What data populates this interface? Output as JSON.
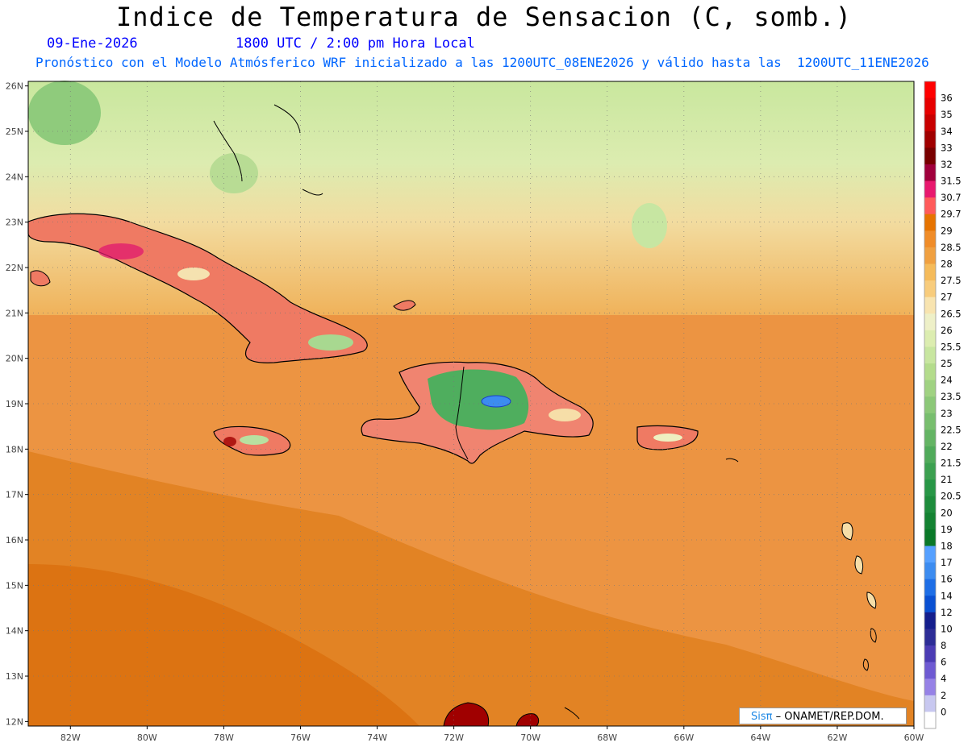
{
  "title": "Indice de Temperatura de Sensacion (C, somb.)",
  "date": "09-Ene-2026",
  "time": "1800 UTC / 2:00 pm Hora Local",
  "init_text": "Pronóstico con el Modelo Atmósferico WRF inicializado a las 1200UTC_08ENE2026 y válido hasta las  1200UTC_11ENE2026",
  "lat_labels": [
    "26N",
    "25N",
    "24N",
    "23N",
    "22N",
    "21N",
    "20N",
    "19N",
    "18N",
    "17N",
    "16N",
    "15N",
    "14N",
    "13N",
    "12N"
  ],
  "lon_labels": [
    "82W",
    "80W",
    "78W",
    "76W",
    "74W",
    "72W",
    "70W",
    "68W",
    "66W",
    "64W",
    "62W",
    "60W"
  ],
  "colorbar": {
    "labels": [
      "36",
      "35",
      "34",
      "33",
      "32",
      "31.5",
      "30.7",
      "29.7",
      "29",
      "28.5",
      "28",
      "27.5",
      "27",
      "26.5",
      "26",
      "25.5",
      "25",
      "24",
      "23.5",
      "23",
      "22.5",
      "22",
      "21.5",
      "21",
      "20.5",
      "20",
      "19",
      "18",
      "17",
      "16",
      "14",
      "12",
      "10",
      "8",
      "6",
      "4",
      "2",
      "0"
    ],
    "colors": [
      "#ff0000",
      "#e60000",
      "#c80000",
      "#a00000",
      "#780000",
      "#a0003c",
      "#e8186e",
      "#ff5a5a",
      "#e67300",
      "#f08c28",
      "#f0a040",
      "#f5bb5a",
      "#f8cc7c",
      "#f8e4b0",
      "#eef0c8",
      "#dcedb0",
      "#c8e6a0",
      "#b4dc8c",
      "#a0d282",
      "#8cc878",
      "#78be6e",
      "#64b464",
      "#50aa5a",
      "#3ca050",
      "#289646",
      "#1e8c3c",
      "#148232",
      "#0a7828",
      "#55a0ff",
      "#3c8cf0",
      "#1e6ee6",
      "#0a50d2",
      "#141e8c",
      "#2d2d96",
      "#4b3cb4",
      "#6e5ad2",
      "#9682e6",
      "#c8c8f0",
      "#ffffff"
    ]
  },
  "credit": {
    "logo": "Sisπ",
    "text": "– ONAMET/REP.DOM."
  },
  "colors": {
    "ocean": "#e98f3a",
    "ocean_dark": "#e07a18",
    "land_green": "#8cc878",
    "frame": "#000000"
  }
}
